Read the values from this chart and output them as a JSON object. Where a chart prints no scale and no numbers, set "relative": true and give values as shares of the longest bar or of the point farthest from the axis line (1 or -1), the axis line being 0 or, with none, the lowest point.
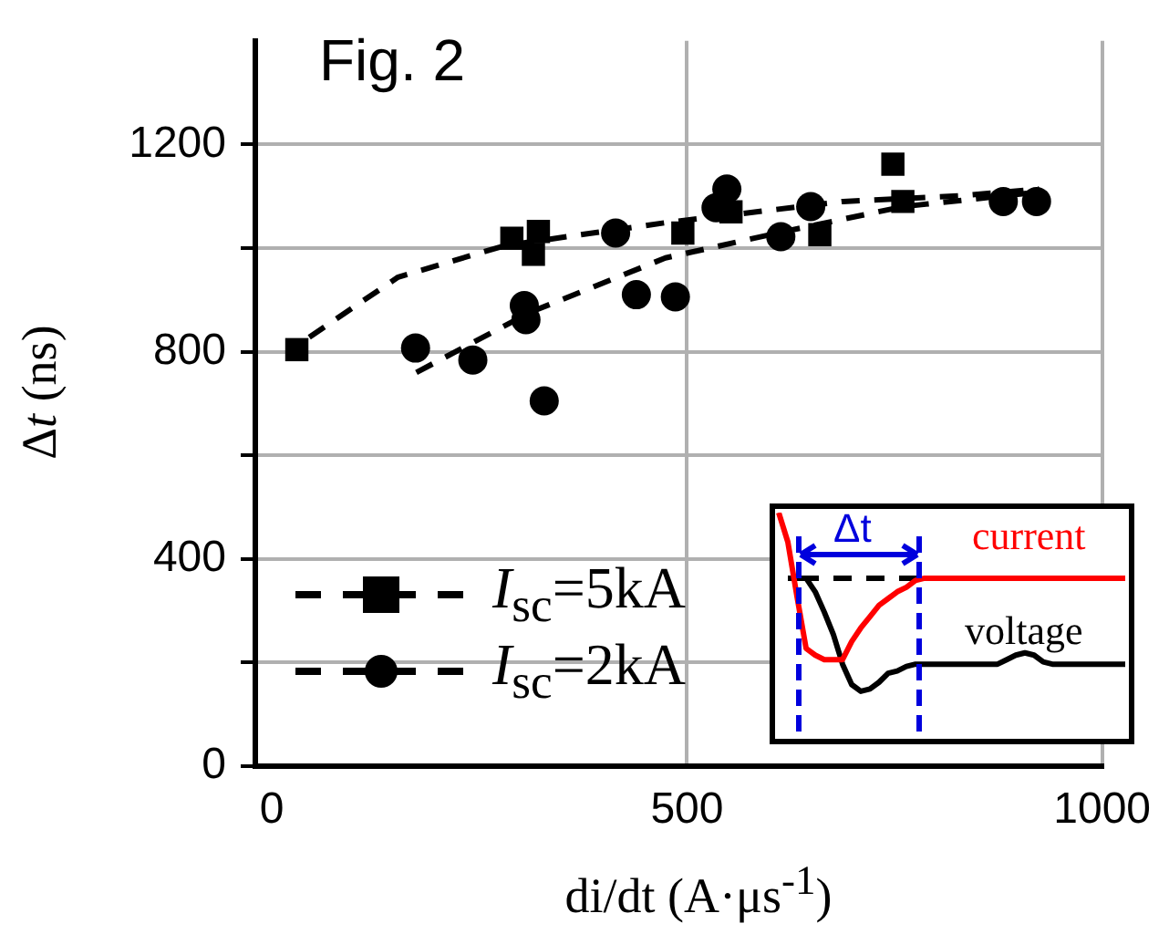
{
  "chart_data": [
    {
      "type": "scatter",
      "xlabel": "d$_{}$i/dt (A·μs$^{-1}$)",
      "ylabel": "Δt (ns)",
      "annotations": [
        "Fig. 2"
      ],
      "xlim": [
        -20,
        1000
      ],
      "xticks": [
        0,
        500,
        1000
      ],
      "ylim": [
        0,
        1400
      ],
      "yticks": [
        0,
        {
          "value": 200,
          "label": null
        },
        400,
        {
          "value": 600,
          "label": null
        },
        800,
        {
          "value": 1000,
          "label": null
        },
        1200
      ],
      "grid": true,
      "legend": "bottom left",
      "series": [
        {
          "name": "I$_{sc}$=5kA",
          "marker": "square",
          "color": "#000000",
          "x": [
            30,
            289,
            321,
            315,
            495,
            553,
            660,
            748,
            760
          ],
          "values": [
            804,
            1019,
            1032,
            988,
            1029,
            1070,
            1026,
            1162,
            1090
          ]
        },
        {
          "name": "I$_{sc}$=2kA",
          "marker": "circle",
          "color": "#000000",
          "x": [
            173,
            242,
            304,
            306,
            328,
            414,
            439,
            486,
            548,
            535,
            613,
            649,
            671,
            881,
            921
          ],
          "values": [
            807,
            784,
            889,
            862,
            705,
            1029,
            910,
            906,
            1114,
            1078,
            1022,
            1080,
            null,
            1090,
            1090
          ]
        },
        {
          "type": "line",
          "marker": "none",
          "line_style": "dashed",
          "color": "#000000",
          "x": [
            45,
            152,
            281,
            474,
            688,
            831,
            924
          ],
          "values": [
            828,
            944,
            1005,
            1049,
            1090,
            1101,
            1114
          ]
        },
        {
          "type": "line",
          "marker": "none",
          "line_style": "dashed",
          "color": "#000000",
          "x": [
            174,
            311,
            474,
            617,
            760,
            917
          ],
          "values": [
            760,
            876,
            981,
            1032,
            1080,
            1107
          ]
        }
      ]
    },
    {
      "type": "line",
      "relative": true,
      "tick_labels": false,
      "legend": false,
      "annotations": [
        "Δt"
      ],
      "categories": [
        null,
        null,
        null,
        null,
        null,
        null,
        null,
        null,
        null,
        null,
        null,
        null,
        null,
        null,
        null,
        null,
        null,
        null,
        null,
        null,
        null,
        null,
        null,
        null,
        null,
        null,
        null,
        null,
        null,
        null,
        null,
        null,
        null,
        null,
        null,
        null,
        null,
        null,
        null
      ],
      "ref_lines": [
        {
          "axis": "y",
          "value": 0.71,
          "color": "#000000",
          "line_style": "dashed"
        }
      ],
      "series": [
        {
          "name": "current",
          "color": "#ff0000",
          "values": [
            1.0,
            0.87,
            0.63,
            0.4,
            0.37,
            0.35,
            0.35,
            0.35,
            0.43,
            0.49,
            0.54,
            0.59,
            0.62,
            0.65,
            0.67,
            0.7,
            0.71,
            0.71,
            0.71,
            0.71,
            0.71,
            0.71,
            0.71,
            0.71,
            0.71,
            0.71,
            0.71,
            0.71,
            0.71,
            0.71,
            0.71,
            0.71,
            0.71,
            0.71,
            0.71,
            0.71,
            0.71,
            0.71,
            0.71
          ]
        },
        {
          "name": "voltage",
          "color": "#000000",
          "values": [
            null,
            0.71,
            0.71,
            0.71,
            0.65,
            0.56,
            0.46,
            0.33,
            0.24,
            0.21,
            0.22,
            0.25,
            0.29,
            0.3,
            0.32,
            0.33,
            0.33,
            0.33,
            0.33,
            0.33,
            0.33,
            0.33,
            0.33,
            0.33,
            0.33,
            0.35,
            0.37,
            0.38,
            0.37,
            0.34,
            0.33,
            0.33,
            0.33,
            0.33,
            0.33,
            0.33,
            0.33,
            0.33,
            0.33
          ]
        }
      ]
    }
  ]
}
